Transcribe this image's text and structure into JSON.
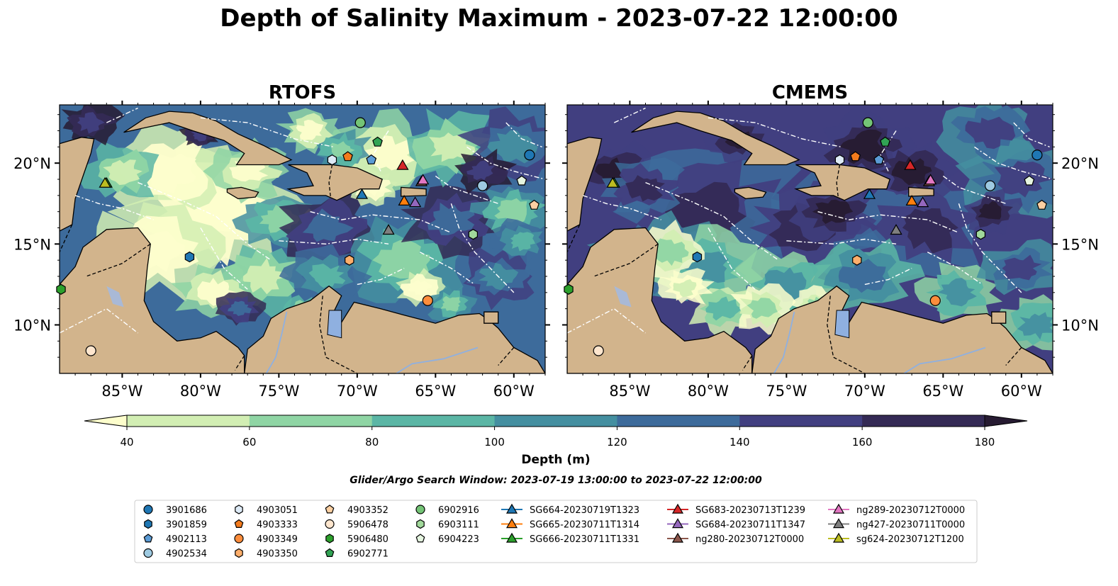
{
  "figure": {
    "title": "Depth of Salinity Maximum - 2023-07-22 12:00:00",
    "search_window": "Glider/Argo Search Window: 2023-07-19 13:00:00 to 2023-07-22 12:00:00"
  },
  "chart_data": {
    "type": "heatmap",
    "panels": [
      {
        "title": "RTOFS",
        "x_ticks": [
          "85°W",
          "80°W",
          "75°W",
          "70°W",
          "65°W",
          "60°W"
        ],
        "y_ticks": [
          "20°N",
          "15°N",
          "10°N"
        ],
        "lon_range": [
          -89,
          -58
        ],
        "lat_range": [
          7,
          23.6
        ]
      },
      {
        "title": "CMEMS",
        "x_ticks": [
          "85°W",
          "80°W",
          "75°W",
          "70°W",
          "65°W",
          "60°W"
        ],
        "y_ticks": [
          "20°N",
          "15°N",
          "10°N"
        ],
        "lon_range": [
          -89,
          -58
        ],
        "lat_range": [
          7,
          23.6
        ]
      }
    ],
    "colorbar": {
      "label": "Depth (m)",
      "ticks": [
        "40",
        "60",
        "80",
        "100",
        "120",
        "140",
        "160",
        "180"
      ],
      "levels": [
        40,
        60,
        80,
        100,
        120,
        140,
        160,
        180
      ],
      "extend": "both",
      "colors": [
        "#fdfecc",
        "#d2eeb3",
        "#8fd5a4",
        "#5bb6a5",
        "#448fa0",
        "#3d6b9b",
        "#413f80",
        "#342a55",
        "#271b32"
      ]
    },
    "legend": {
      "location": "bottom",
      "columns": [
        [
          {
            "label": "3901686",
            "marker": "circle",
            "color": "#1f77b4"
          },
          {
            "label": "3901859",
            "marker": "hexagon",
            "color": "#1f77b4"
          },
          {
            "label": "4902113",
            "marker": "pentagon",
            "color": "#5b9bd5"
          },
          {
            "label": "4902534",
            "marker": "circle",
            "color": "#9ecae1"
          }
        ],
        [
          {
            "label": "4903051",
            "marker": "hexagon",
            "color": "#deebf7"
          },
          {
            "label": "4903333",
            "marker": "pentagon",
            "color": "#f37b1d"
          },
          {
            "label": "4903349",
            "marker": "circle",
            "color": "#fd8d3c"
          },
          {
            "label": "4903350",
            "marker": "hexagon",
            "color": "#fdae6b"
          }
        ],
        [
          {
            "label": "4903352",
            "marker": "pentagon",
            "color": "#fdd0a2"
          },
          {
            "label": "5906478",
            "marker": "circle",
            "color": "#fee6ce"
          },
          {
            "label": "5906480",
            "marker": "hexagon",
            "color": "#2ca02c"
          },
          {
            "label": "6902771",
            "marker": "pentagon",
            "color": "#31a354"
          }
        ],
        [
          {
            "label": "6902916",
            "marker": "circle",
            "color": "#74c476"
          },
          {
            "label": "6903111",
            "marker": "hexagon",
            "color": "#a1d99b"
          },
          {
            "label": "6904223",
            "marker": "pentagon",
            "color": "#e5f5e0"
          }
        ],
        [
          {
            "label": "SG664-20230719T1323",
            "marker": "triangle",
            "color": "#1f77b4"
          },
          {
            "label": "SG665-20230711T1314",
            "marker": "triangle",
            "color": "#ff7f0e"
          },
          {
            "label": "SG666-20230711T1331",
            "marker": "triangle",
            "color": "#2ca02c"
          }
        ],
        [
          {
            "label": "SG683-20230713T1239",
            "marker": "triangle",
            "color": "#d62728"
          },
          {
            "label": "SG684-20230711T1347",
            "marker": "triangle",
            "color": "#9467bd"
          },
          {
            "label": "ng280-20230712T0000",
            "marker": "triangle",
            "color": "#8c564b"
          }
        ],
        [
          {
            "label": "ng289-20230712T0000",
            "marker": "triangle",
            "color": "#e377c2"
          },
          {
            "label": "ng427-20230711T0000",
            "marker": "triangle",
            "color": "#7f7f7f"
          },
          {
            "label": "sg624-20230712T1200",
            "marker": "triangle",
            "color": "#bcbd22"
          }
        ]
      ]
    },
    "observations": [
      {
        "id": "3901686",
        "lon": -59.0,
        "lat": 20.5
      },
      {
        "id": "3901859",
        "lon": -80.7,
        "lat": 14.2
      },
      {
        "id": "4902113",
        "lon": -69.1,
        "lat": 20.2
      },
      {
        "id": "4902534",
        "lon": -62.0,
        "lat": 18.6
      },
      {
        "id": "4903051",
        "lon": -71.6,
        "lat": 20.2
      },
      {
        "id": "4903333",
        "lon": -70.6,
        "lat": 20.4
      },
      {
        "id": "4903349",
        "lon": -65.5,
        "lat": 11.5
      },
      {
        "id": "4903350",
        "lon": -70.5,
        "lat": 14.0
      },
      {
        "id": "4903352",
        "lon": -58.7,
        "lat": 17.4
      },
      {
        "id": "5906478",
        "lon": -87.0,
        "lat": 8.4
      },
      {
        "id": "5906480",
        "lon": -89.2,
        "lat": 12.2
      },
      {
        "id": "6902771",
        "lon": -68.7,
        "lat": 21.3
      },
      {
        "id": "6902916",
        "lon": -69.8,
        "lat": 22.5
      },
      {
        "id": "6903111",
        "lon": -62.6,
        "lat": 15.6
      },
      {
        "id": "6904223",
        "lon": -59.5,
        "lat": 18.9
      },
      {
        "id": "SG664-20230719T1323",
        "lon": -69.7,
        "lat": 18.0
      },
      {
        "id": "SG665-20230711T1314",
        "lon": -67.0,
        "lat": 17.6
      },
      {
        "id": "SG666-20230711T1331",
        "lon": -86.0,
        "lat": 18.7
      },
      {
        "id": "SG683-20230713T1239",
        "lon": -67.1,
        "lat": 19.8
      },
      {
        "id": "SG684-20230711T1347",
        "lon": -66.3,
        "lat": 17.5
      },
      {
        "id": "ng280-20230712T0000",
        "lon": -65.9,
        "lat": 18.8
      },
      {
        "id": "ng289-20230712T0000",
        "lon": -65.8,
        "lat": 18.9
      },
      {
        "id": "ng427-20230711T0000",
        "lon": -68.0,
        "lat": 15.8
      },
      {
        "id": "sg624-20230712T1200",
        "lon": -86.1,
        "lat": 18.7
      }
    ]
  }
}
